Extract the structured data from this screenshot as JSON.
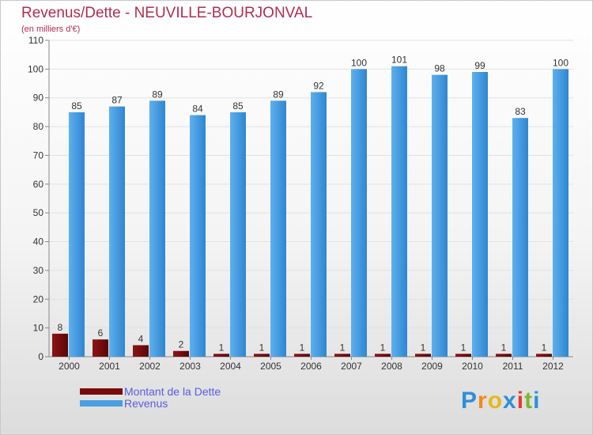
{
  "header": {
    "title": "Revenus/Dette - NEUVILLE-BOURJONVAL",
    "subtitle": "(en milliers d'€)"
  },
  "legend": {
    "items": [
      {
        "label": "Montant de la Dette",
        "color": "#7a0a0a"
      },
      {
        "label": "Revenus",
        "color": "#4a9fe0"
      }
    ]
  },
  "logo": {
    "letters": [
      "P",
      "r",
      "o",
      "x",
      "i",
      "t",
      "i"
    ],
    "colors": [
      "#2f8fd8",
      "#f08a1c",
      "#e6b71f",
      "#2f8fd8",
      "#e63a2e",
      "#7ab82e",
      "#2f8fd8"
    ]
  },
  "chart_data": {
    "type": "bar",
    "title": "Revenus/Dette - NEUVILLE-BOURJONVAL",
    "subtitle": "(en milliers d'€)",
    "categories": [
      "2000",
      "2001",
      "2002",
      "2003",
      "2004",
      "2005",
      "2006",
      "2007",
      "2008",
      "2009",
      "2010",
      "2011",
      "2012"
    ],
    "series": [
      {
        "name": "Montant de la Dette",
        "color": "#7a0a0a",
        "values": [
          8,
          6,
          4,
          2,
          1,
          1,
          1,
          1,
          1,
          1,
          1,
          1,
          1
        ]
      },
      {
        "name": "Revenus",
        "color": "#4a9fe0",
        "values": [
          85,
          87,
          89,
          84,
          85,
          89,
          92,
          100,
          101,
          98,
          99,
          83,
          100
        ]
      }
    ],
    "ylim": [
      0,
      110
    ],
    "yticks": [
      0,
      10,
      20,
      30,
      40,
      50,
      60,
      70,
      80,
      90,
      100,
      110
    ],
    "grid": true,
    "legend_position": "bottom-left"
  }
}
